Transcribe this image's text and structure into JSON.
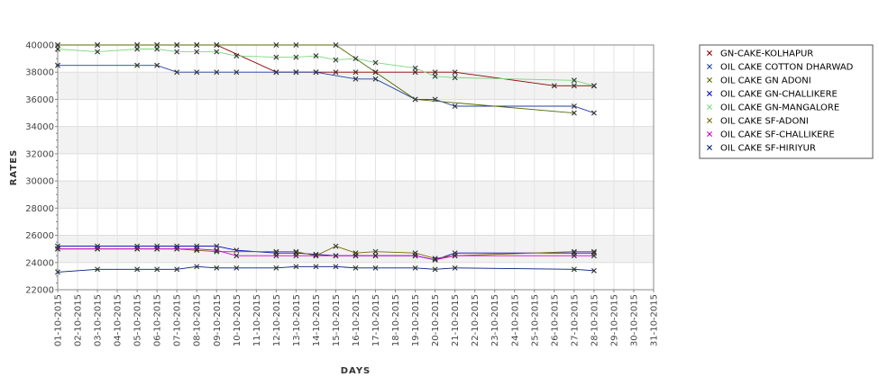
{
  "chart_data": {
    "type": "line",
    "xlabel": "DAYS",
    "ylabel": "RATES",
    "ylim": [
      22000,
      40000
    ],
    "y_ticks": [
      22000,
      24000,
      26000,
      28000,
      30000,
      32000,
      34000,
      36000,
      38000,
      40000
    ],
    "y_tick_labels": [
      "22000",
      "24000",
      "26000",
      "28000",
      "30000",
      "32000",
      "34000",
      "36000",
      "38000",
      "40000"
    ],
    "x_categories": [
      "01-10-2015",
      "02-10-2015",
      "03-10-2015",
      "04-10-2015",
      "05-10-2015",
      "06-10-2015",
      "07-10-2015",
      "08-10-2015",
      "09-10-2015",
      "10-10-2015",
      "11-10-2015",
      "12-10-2015",
      "13-10-2015",
      "14-10-2015",
      "15-10-2015",
      "16-10-2015",
      "17-10-2015",
      "18-10-2015",
      "19-10-2015",
      "20-10-2015",
      "21-10-2015",
      "22-10-2015",
      "23-10-2015",
      "24-10-2015",
      "25-10-2015",
      "26-10-2015",
      "27-10-2015",
      "28-10-2015",
      "29-10-2015",
      "30-10-2015",
      "31-10-2015"
    ],
    "grid": true,
    "alternating_bands": true,
    "legend_position": "right",
    "marker": "x",
    "series": [
      {
        "name": "GN-CAKE-KOLHAPUR",
        "color": "#8b0000",
        "points": [
          [
            1,
            40000
          ],
          [
            3,
            40000
          ],
          [
            5,
            40000
          ],
          [
            6,
            40000
          ],
          [
            7,
            40000
          ],
          [
            8,
            40000
          ],
          [
            9,
            40000
          ],
          [
            12,
            38000
          ],
          [
            13,
            38000
          ],
          [
            14,
            38000
          ],
          [
            15,
            38000
          ],
          [
            16,
            38000
          ],
          [
            17,
            38000
          ],
          [
            19,
            38000
          ],
          [
            20,
            38000
          ],
          [
            21,
            38000
          ],
          [
            26,
            37000
          ],
          [
            27,
            37000
          ],
          [
            28,
            37000
          ]
        ]
      },
      {
        "name": "OIL CAKE COTTON DHARWAD",
        "color": "#1f3f9f",
        "points": [
          [
            1,
            38500
          ],
          [
            5,
            38500
          ],
          [
            6,
            38500
          ],
          [
            7,
            38000
          ],
          [
            8,
            38000
          ],
          [
            9,
            38000
          ],
          [
            10,
            38000
          ],
          [
            12,
            38000
          ],
          [
            13,
            38000
          ],
          [
            14,
            38000
          ],
          [
            16,
            37500
          ],
          [
            17,
            37500
          ],
          [
            19,
            36000
          ],
          [
            20,
            36000
          ],
          [
            21,
            35500
          ],
          [
            27,
            35500
          ],
          [
            28,
            35000
          ]
        ]
      },
      {
        "name": "OIL CAKE GN ADONI",
        "color": "#556b00",
        "points": [
          [
            1,
            40000
          ],
          [
            3,
            40000
          ],
          [
            5,
            40000
          ],
          [
            6,
            40000
          ],
          [
            7,
            40000
          ],
          [
            8,
            40000
          ],
          [
            9,
            40000
          ],
          [
            12,
            40000
          ],
          [
            13,
            40000
          ],
          [
            15,
            40000
          ],
          [
            17,
            38000
          ],
          [
            19,
            36000
          ],
          [
            27,
            35000
          ]
        ]
      },
      {
        "name": "OIL CAKE GN-CHALLIKERE",
        "color": "#0000cc",
        "points": [
          [
            1,
            25200
          ],
          [
            3,
            25200
          ],
          [
            5,
            25200
          ],
          [
            6,
            25200
          ],
          [
            7,
            25200
          ],
          [
            8,
            25200
          ],
          [
            9,
            25200
          ],
          [
            10,
            24900
          ],
          [
            12,
            24700
          ],
          [
            13,
            24700
          ],
          [
            14,
            24600
          ],
          [
            15,
            24500
          ],
          [
            16,
            24500
          ],
          [
            17,
            24500
          ],
          [
            19,
            24500
          ],
          [
            20,
            24200
          ],
          [
            21,
            24700
          ],
          [
            27,
            24700
          ],
          [
            28,
            24700
          ]
        ]
      },
      {
        "name": "OIL CAKE GN-MANGALORE",
        "color": "#7fd67f",
        "points": [
          [
            1,
            39700
          ],
          [
            3,
            39500
          ],
          [
            5,
            39700
          ],
          [
            6,
            39700
          ],
          [
            7,
            39500
          ],
          [
            8,
            39500
          ],
          [
            9,
            39500
          ],
          [
            10,
            39200
          ],
          [
            12,
            39100
          ],
          [
            13,
            39100
          ],
          [
            14,
            39200
          ],
          [
            15,
            38900
          ],
          [
            16,
            39000
          ],
          [
            17,
            38700
          ],
          [
            19,
            38300
          ],
          [
            20,
            37700
          ],
          [
            21,
            37600
          ],
          [
            27,
            37400
          ],
          [
            28,
            37000
          ]
        ]
      },
      {
        "name": "OIL CAKE SF-ADONI",
        "color": "#7a6a00",
        "points": [
          [
            1,
            25000
          ],
          [
            3,
            25000
          ],
          [
            5,
            25000
          ],
          [
            6,
            25000
          ],
          [
            7,
            25000
          ],
          [
            8,
            24900
          ],
          [
            9,
            24800
          ],
          [
            12,
            24800
          ],
          [
            13,
            24800
          ],
          [
            14,
            24500
          ],
          [
            15,
            25200
          ],
          [
            16,
            24700
          ],
          [
            17,
            24800
          ],
          [
            19,
            24700
          ],
          [
            20,
            24300
          ],
          [
            21,
            24500
          ],
          [
            27,
            24800
          ],
          [
            28,
            24800
          ]
        ]
      },
      {
        "name": "OIL CAKE SF-CHALLIKERE",
        "color": "#cc00cc",
        "points": [
          [
            1,
            25000
          ],
          [
            3,
            25000
          ],
          [
            5,
            25000
          ],
          [
            6,
            25000
          ],
          [
            7,
            25000
          ],
          [
            8,
            25000
          ],
          [
            9,
            24900
          ],
          [
            10,
            24500
          ],
          [
            12,
            24500
          ],
          [
            13,
            24500
          ],
          [
            14,
            24500
          ],
          [
            15,
            24500
          ],
          [
            16,
            24500
          ],
          [
            17,
            24500
          ],
          [
            19,
            24500
          ],
          [
            20,
            24200
          ],
          [
            21,
            24500
          ],
          [
            27,
            24500
          ],
          [
            28,
            24500
          ]
        ]
      },
      {
        "name": "OIL CAKE SF-HIRIYUR",
        "color": "#001f7f",
        "points": [
          [
            1,
            23300
          ],
          [
            3,
            23500
          ],
          [
            5,
            23500
          ],
          [
            6,
            23500
          ],
          [
            7,
            23500
          ],
          [
            8,
            23700
          ],
          [
            9,
            23600
          ],
          [
            10,
            23600
          ],
          [
            12,
            23600
          ],
          [
            13,
            23700
          ],
          [
            14,
            23700
          ],
          [
            15,
            23700
          ],
          [
            16,
            23600
          ],
          [
            17,
            23600
          ],
          [
            19,
            23600
          ],
          [
            20,
            23500
          ],
          [
            21,
            23600
          ],
          [
            27,
            23500
          ],
          [
            28,
            23400
          ]
        ]
      }
    ]
  }
}
